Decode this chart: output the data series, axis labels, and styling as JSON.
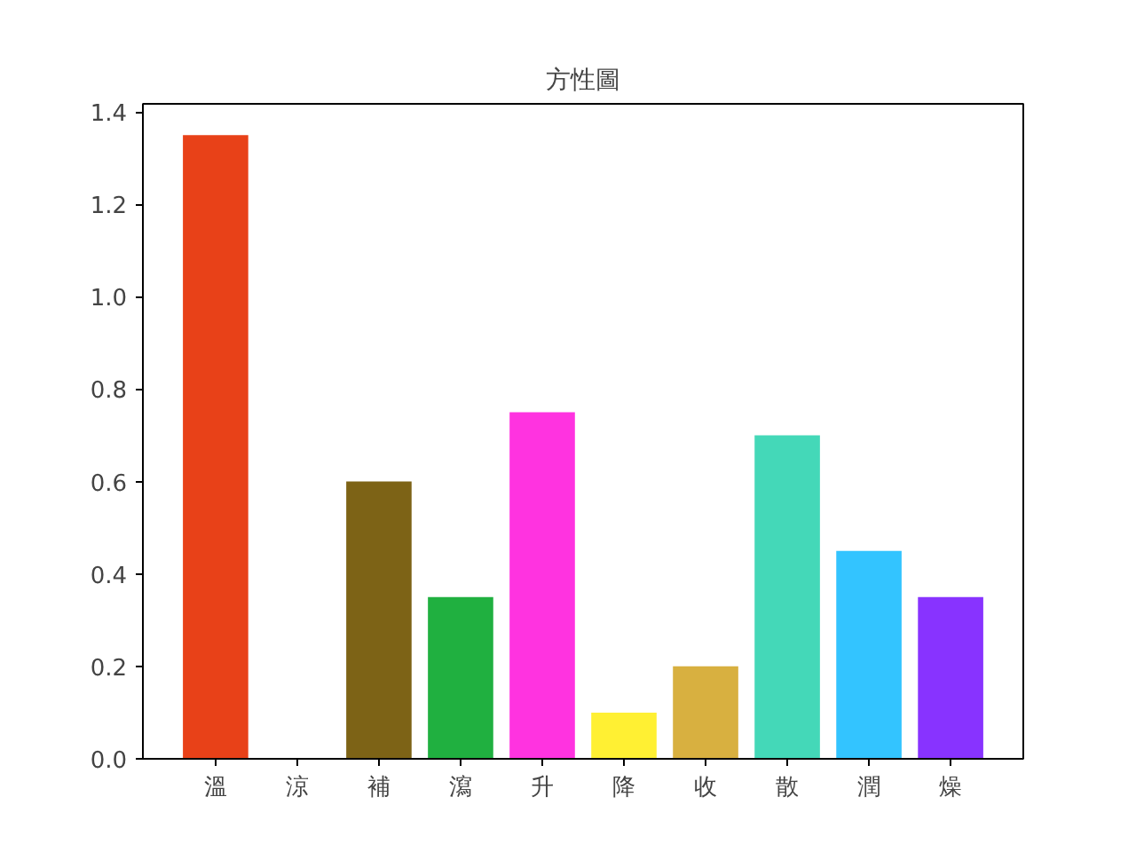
{
  "chart_data": {
    "type": "bar",
    "title": "方性圖",
    "categories": [
      "溫",
      "涼",
      "補",
      "瀉",
      "升",
      "降",
      "收",
      "散",
      "潤",
      "燥"
    ],
    "values": [
      1.35,
      0,
      0.6,
      0.35,
      0.75,
      0.1,
      0.2,
      0.7,
      0.45,
      0.35
    ],
    "colors": [
      "#e84118",
      "#44bd32",
      "#7d6316",
      "#20b040",
      "#ff33e0",
      "#fff033",
      "#d8b040",
      "#44d8b8",
      "#33c4ff",
      "#8833ff"
    ],
    "ylim": [
      0,
      1.4175
    ],
    "yticks": [
      {
        "value": 0,
        "label": "0.0"
      },
      0.2,
      0.4,
      0.6,
      0.8,
      {
        "value": 1,
        "label": "1.0"
      },
      1.2,
      1.4
    ],
    "grid": false
  }
}
